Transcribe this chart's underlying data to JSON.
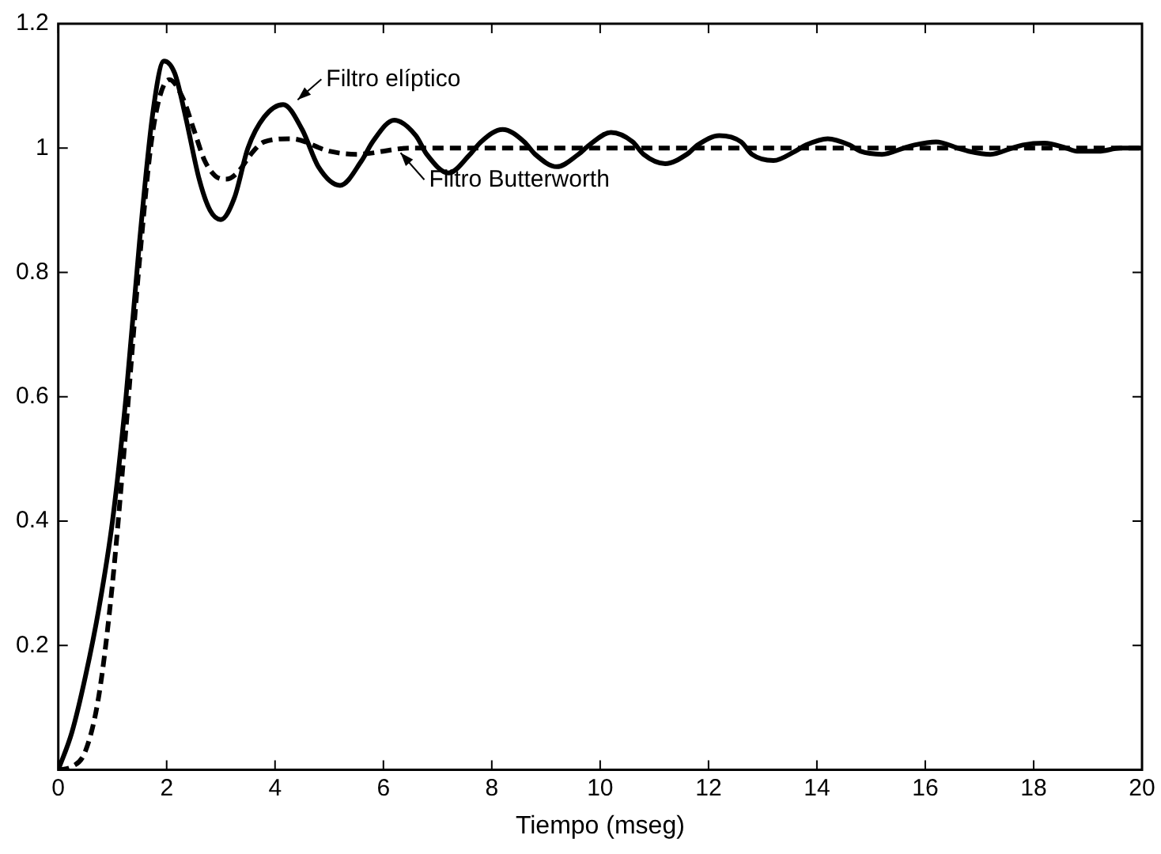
{
  "chart_data": {
    "type": "line",
    "xlabel": "Tiempo (mseg)",
    "xlim": [
      0,
      20
    ],
    "xticks": [
      0,
      2,
      4,
      6,
      8,
      10,
      12,
      14,
      16,
      18,
      20
    ],
    "ylim": [
      0,
      1.2
    ],
    "yticks": [
      0.2,
      0.4,
      0.6,
      0.8,
      1,
      1.2
    ],
    "grid": false,
    "legend": false,
    "marker": "none",
    "series": [
      {
        "color": "#000000",
        "line_style": "solid",
        "x": [
          0,
          0.25,
          0.5,
          0.75,
          1,
          1.25,
          1.5,
          1.75,
          1.95,
          2.15,
          2.35,
          2.6,
          2.8,
          3.0,
          3.25,
          3.5,
          3.8,
          4.15,
          4.5,
          4.8,
          5.2,
          5.6,
          5.8,
          6.2,
          6.6,
          6.8,
          7.2,
          7.6,
          7.8,
          8.2,
          8.6,
          8.8,
          9.2,
          9.6,
          9.8,
          10.2,
          10.6,
          10.8,
          11.2,
          11.6,
          11.8,
          12.2,
          12.6,
          12.8,
          13.2,
          13.6,
          13.8,
          14.2,
          14.6,
          14.8,
          15.2,
          15.6,
          15.8,
          16.2,
          16.6,
          16.8,
          17.2,
          17.6,
          17.8,
          18.2,
          18.6,
          18.8,
          19.2,
          19.6,
          20
        ],
        "values": [
          0,
          0.06,
          0.15,
          0.26,
          0.4,
          0.6,
          0.85,
          1.06,
          1.14,
          1.12,
          1.05,
          0.95,
          0.9,
          0.885,
          0.92,
          1.0,
          1.05,
          1.07,
          1.03,
          0.97,
          0.94,
          0.98,
          1.01,
          1.045,
          1.02,
          0.99,
          0.96,
          0.99,
          1.01,
          1.03,
          1.01,
          0.99,
          0.97,
          0.99,
          1.005,
          1.025,
          1.01,
          0.99,
          0.975,
          0.99,
          1.005,
          1.02,
          1.01,
          0.99,
          0.98,
          0.995,
          1.005,
          1.015,
          1.005,
          0.995,
          0.99,
          1.0,
          1.005,
          1.01,
          1.0,
          0.995,
          0.99,
          1.0,
          1.005,
          1.008,
          1.0,
          0.995,
          0.995,
          1.0,
          1.0
        ]
      },
      {
        "color": "#000000",
        "line_style": "dashed",
        "x": [
          0,
          0.25,
          0.5,
          0.75,
          1,
          1.25,
          1.5,
          1.75,
          2.05,
          2.3,
          2.5,
          2.7,
          2.9,
          3.1,
          3.3,
          3.6,
          3.8,
          4.3,
          5.0,
          5.5,
          6.5,
          8,
          10,
          12,
          14,
          16,
          18,
          20
        ],
        "values": [
          0,
          0.005,
          0.03,
          0.12,
          0.3,
          0.55,
          0.82,
          1.03,
          1.11,
          1.08,
          1.03,
          0.98,
          0.955,
          0.95,
          0.96,
          0.995,
          1.01,
          1.015,
          0.995,
          0.99,
          1.0,
          1.0,
          1.0,
          1.0,
          1.0,
          1.0,
          1.0,
          1.0
        ]
      }
    ],
    "annotations": [
      {
        "text": "Filtro elíptico",
        "x": 4.3,
        "y": 1.07
      },
      {
        "text": "Filtro Butterworth",
        "x": 6.2,
        "y": 1.0
      }
    ]
  }
}
